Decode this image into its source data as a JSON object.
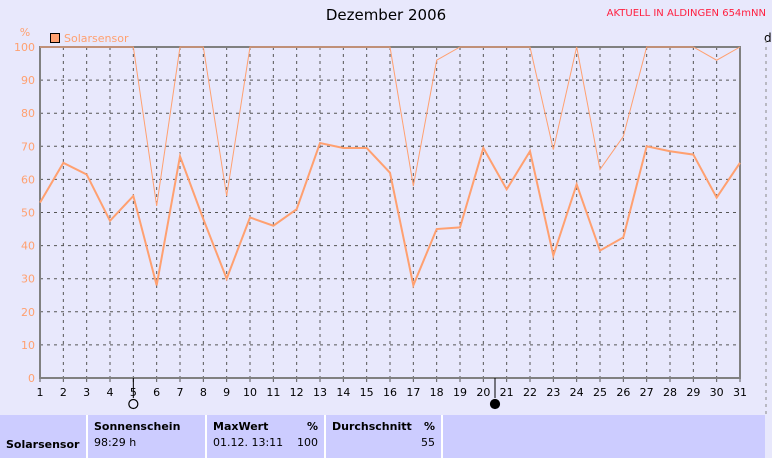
{
  "header": {
    "title": "Dezember 2006",
    "current": "AKTUELL IN ALDINGEN 654mNN",
    "right_axis_label": "d"
  },
  "chart_data": {
    "type": "line",
    "ylabel": "%",
    "ylim": [
      0,
      100
    ],
    "yticks": [
      0,
      10,
      20,
      30,
      40,
      50,
      60,
      70,
      80,
      90,
      100
    ],
    "x": [
      1,
      2,
      3,
      4,
      5,
      6,
      7,
      8,
      9,
      10,
      11,
      12,
      13,
      14,
      15,
      16,
      17,
      18,
      19,
      20,
      21,
      22,
      23,
      24,
      25,
      26,
      27,
      28,
      29,
      30,
      31
    ],
    "grid": true,
    "legend": "top-left",
    "color": "#ffa070",
    "series": [
      {
        "name": "Solarsensor",
        "values": [
          53,
          65,
          61.5,
          47.5,
          55,
          28,
          67,
          48,
          30,
          48.5,
          46,
          51,
          71,
          69.5,
          69.5,
          62,
          28,
          45,
          45.5,
          69.5,
          57,
          68.5,
          37,
          58.5,
          38.5,
          42.5,
          70,
          68.5,
          67.5,
          54.5,
          65
        ]
      },
      {
        "values": [
          100,
          100,
          100,
          100,
          100,
          52,
          100,
          100,
          55,
          100,
          100,
          100,
          100,
          100,
          100,
          100,
          58,
          96,
          100,
          100,
          100,
          100,
          69,
          100,
          63,
          73,
          100,
          100,
          100,
          96,
          100
        ]
      }
    ],
    "moon_phases": [
      {
        "day": 5,
        "phase": "full-moon"
      },
      {
        "day": 20.5,
        "phase": "new-moon"
      }
    ]
  },
  "table": {
    "row_label": "Solarsensor",
    "sunshine": {
      "header": "Sonnenschein",
      "value": "98:29 h"
    },
    "max": {
      "header": "MaxWert",
      "unit": "%",
      "date": "01.12.  13:11",
      "value": "100"
    },
    "avg": {
      "header": "Durchschnitt",
      "unit": "%",
      "value": "55"
    }
  }
}
